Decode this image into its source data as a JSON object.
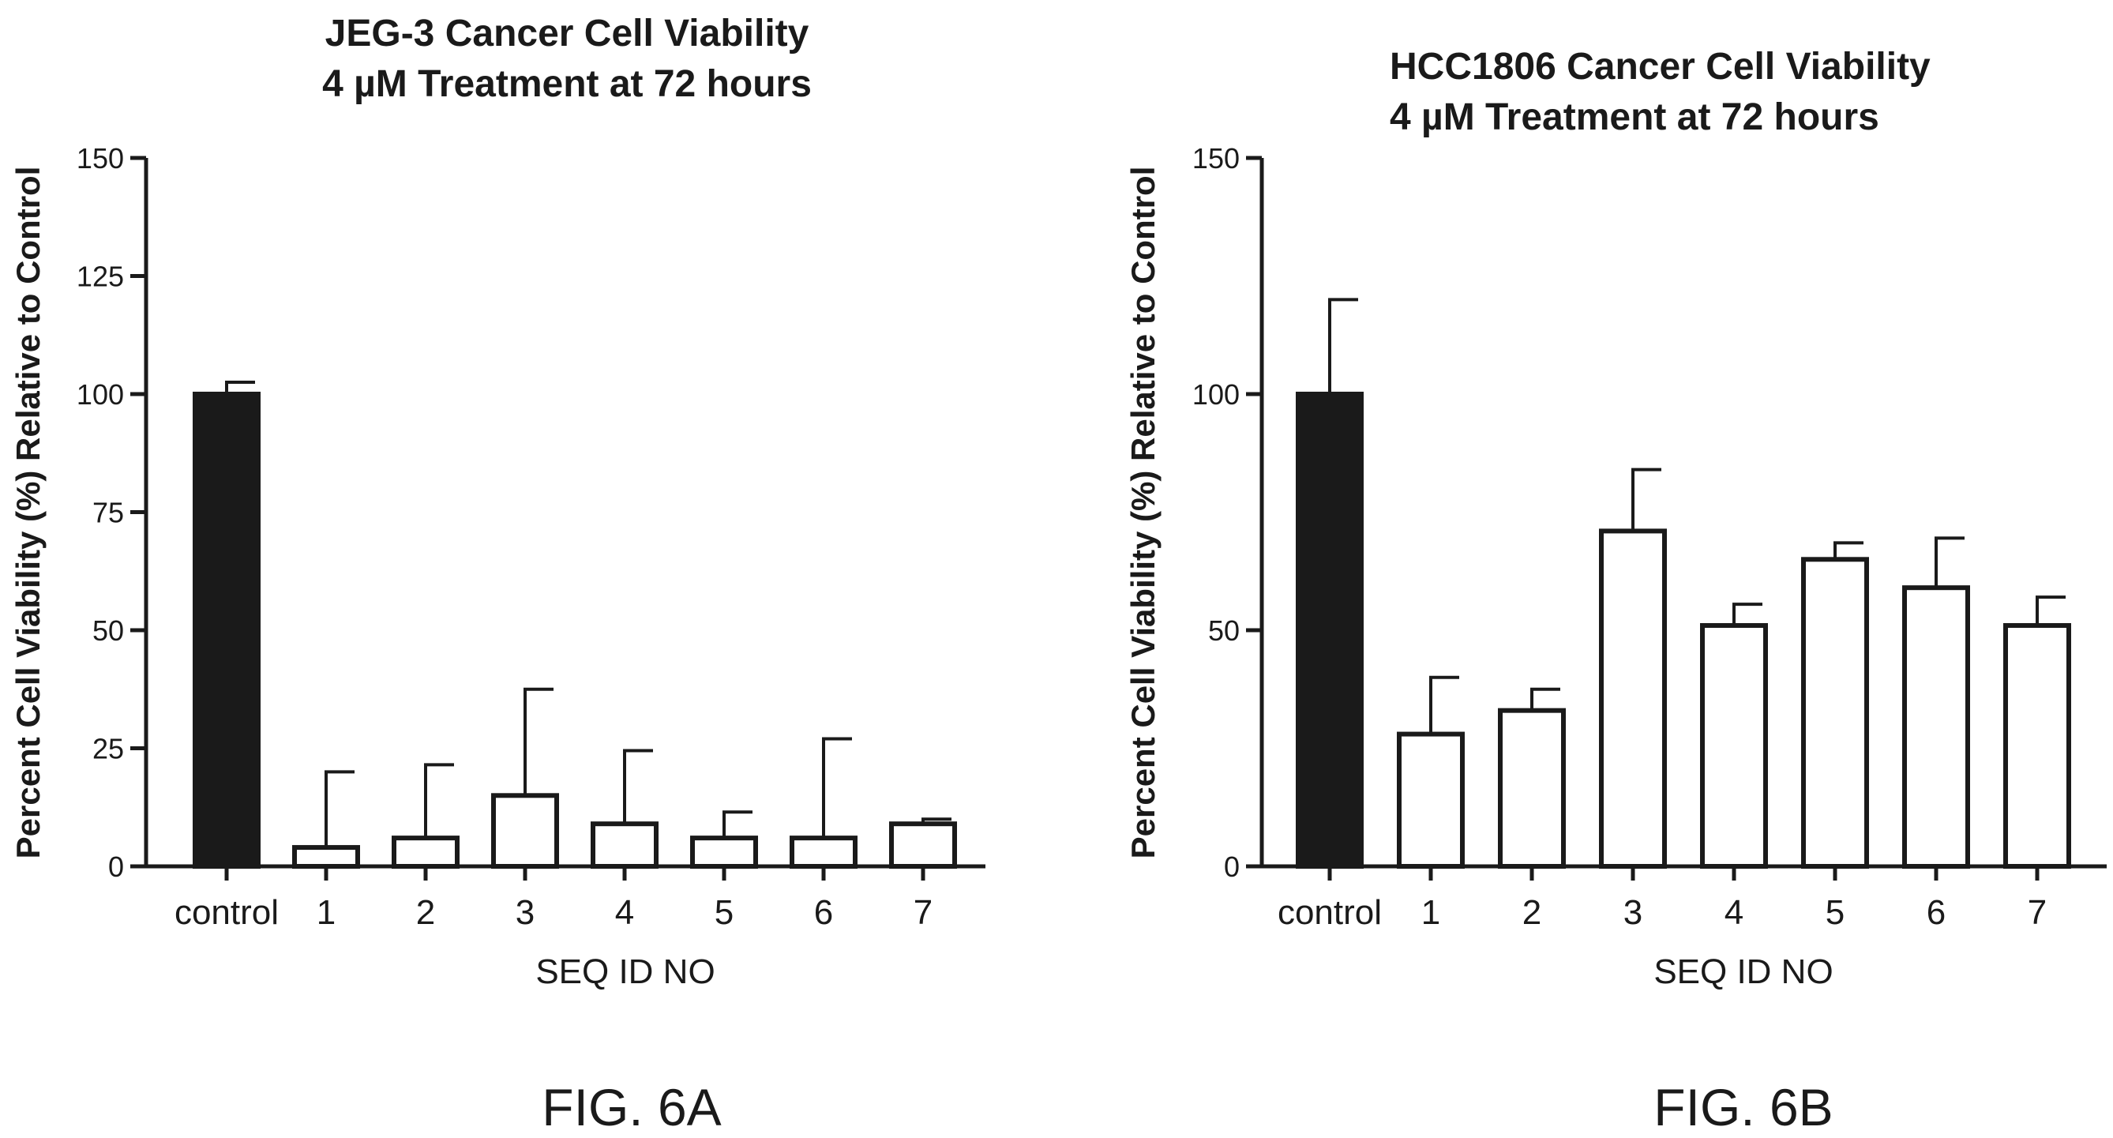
{
  "chart_data": [
    {
      "type": "bar",
      "figure_label": "FIG. 6A",
      "title": [
        "JEG-3 Cancer Cell Viability",
        "4 µM Treatment at 72 hours"
      ],
      "xlabel": "SEQ ID NO",
      "ylabel": "Percent Cell Viability (%) Relative to Control",
      "ylim": [
        0,
        150
      ],
      "yticks": [
        0,
        25,
        50,
        75,
        100,
        125,
        150
      ],
      "categories": [
        "control",
        "1",
        "2",
        "3",
        "4",
        "5",
        "6",
        "7"
      ],
      "values": [
        100,
        4,
        6,
        15,
        9,
        6,
        6,
        9
      ],
      "error_upper": [
        102.5,
        20,
        21.5,
        37.5,
        24.5,
        11.5,
        27,
        10
      ],
      "fills": [
        "#1a1a1a",
        "#ffffff",
        "#ffffff",
        "#ffffff",
        "#ffffff",
        "#ffffff",
        "#ffffff",
        "#ffffff"
      ]
    },
    {
      "type": "bar",
      "figure_label": "FIG. 6B",
      "title": [
        "HCC1806 Cancer Cell Viability",
        "4 µM Treatment at 72 hours"
      ],
      "xlabel": "SEQ ID NO",
      "ylabel": "Percent Cell Viability (%) Relative to Control",
      "ylim": [
        0,
        150
      ],
      "yticks": [
        0,
        50,
        100,
        150
      ],
      "categories": [
        "control",
        "1",
        "2",
        "3",
        "4",
        "5",
        "6",
        "7"
      ],
      "values": [
        100,
        28,
        33,
        71,
        51,
        65,
        59,
        51
      ],
      "error_upper": [
        120,
        40,
        37.5,
        84,
        55.5,
        68.5,
        69.5,
        57
      ],
      "fills": [
        "#1a1a1a",
        "#ffffff",
        "#ffffff",
        "#ffffff",
        "#ffffff",
        "#ffffff",
        "#ffffff",
        "#ffffff"
      ]
    }
  ]
}
